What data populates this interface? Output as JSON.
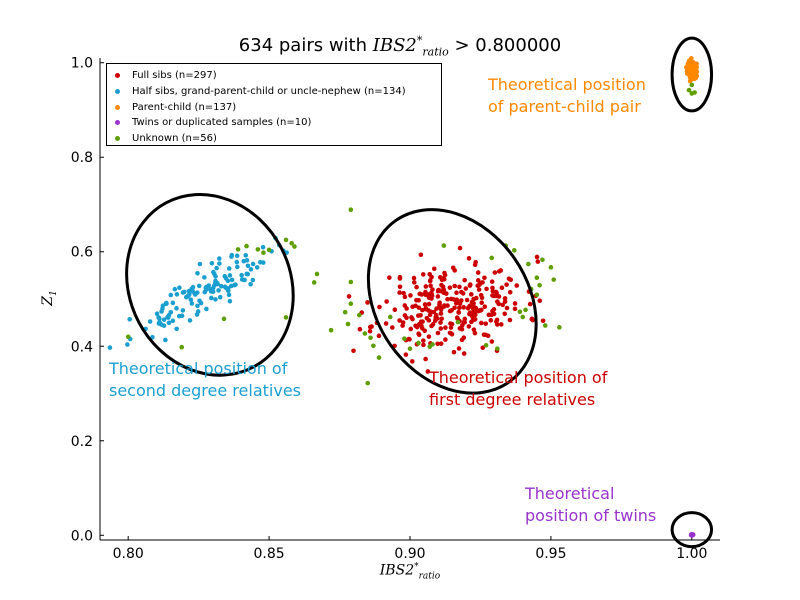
{
  "colors": {
    "full_sibs": "#cc0000",
    "half_sibs": "#1b9fd1",
    "parent_child": "#ff8800",
    "twins": "#9933cc",
    "unknown": "#5e9e00",
    "ellipse": "#000000"
  },
  "chart_data": {
    "type": "scatter",
    "title": {
      "prefix": "634 pairs with ",
      "math_base": "IBS2",
      "math_sup": "*",
      "math_sub": "ratio",
      "suffix": " > 0.800000"
    },
    "xlabel": {
      "base": "IBS2",
      "sup": "*",
      "sub": "ratio"
    },
    "ylabel": {
      "base": "Z",
      "sub": "1"
    },
    "xlim": [
      0.79,
      1.01
    ],
    "ylim": [
      -0.01,
      1.01
    ],
    "xticks": [
      "0.80",
      "0.85",
      "0.90",
      "0.95",
      "1.00"
    ],
    "yticks": [
      "0.0",
      "0.2",
      "0.4",
      "0.6",
      "0.8",
      "1.0"
    ],
    "grid": false,
    "legend_position": "top-left",
    "legend": [
      {
        "label": "Full sibs (n=297)",
        "color_key": "full_sibs"
      },
      {
        "label": "Half sibs, grand-parent-child or uncle-nephew (n=134)",
        "color_key": "half_sibs"
      },
      {
        "label": "Parent-child (n=137)",
        "color_key": "parent_child"
      },
      {
        "label": "Twins or duplicated samples (n=10)",
        "color_key": "twins"
      },
      {
        "label": "Unknown (n=56)",
        "color_key": "unknown"
      }
    ],
    "regions": [
      {
        "cx": 0.915,
        "cy": 0.495,
        "rx": 0.035,
        "ry": 0.16,
        "angle": 55
      },
      {
        "cx": 0.829,
        "cy": 0.53,
        "rx": 0.033,
        "ry": 0.17,
        "angle": 62
      },
      {
        "cx": 1.0,
        "cy": 0.975,
        "rx": 0.007,
        "ry": 0.077,
        "angle": 0
      },
      {
        "cx": 1.0,
        "cy": 0.012,
        "rx": 0.007,
        "ry": 0.036,
        "angle": 0
      }
    ],
    "series": [
      {
        "name": "Full sibs (n=297)",
        "color_key": "full_sibs",
        "generator": {
          "count": 297,
          "cx": 0.915,
          "cy": 0.485,
          "sx": 0.013,
          "sy": 0.045,
          "rho": 0.15,
          "seed": 11
        }
      },
      {
        "name": "Half sibs, grand-parent-child or uncle-nephew (n=134)",
        "color_key": "half_sibs",
        "generator": {
          "count": 134,
          "cx": 0.826,
          "cy": 0.51,
          "sx": 0.012,
          "sy": 0.045,
          "rho": 0.88,
          "seed": 23
        }
      },
      {
        "name": "Parent-child (n=137)",
        "color_key": "parent_child",
        "generator": {
          "count": 137,
          "cx": 1.0,
          "cy": 0.985,
          "sx": 0.0008,
          "sy": 0.01,
          "rho": 0.0,
          "seed": 37
        }
      },
      {
        "name": "Twins or duplicated samples (n=10)",
        "color_key": "twins",
        "generator": {
          "count": 10,
          "cx": 1.0,
          "cy": 0.001,
          "sx": 0.0003,
          "sy": 0.001,
          "rho": 0.0,
          "seed": 41
        }
      },
      {
        "name": "Unknown (n=56)",
        "color_key": "unknown",
        "points": [
          [
            0.879,
            0.689
          ],
          [
            0.867,
            0.553
          ],
          [
            0.866,
            0.535
          ],
          [
            0.856,
            0.625
          ],
          [
            0.858,
            0.618
          ],
          [
            0.859,
            0.611
          ],
          [
            0.85,
            0.604
          ],
          [
            0.848,
            0.598
          ],
          [
            0.846,
            0.605
          ],
          [
            0.842,
            0.612
          ],
          [
            0.839,
            0.605
          ],
          [
            0.872,
            0.434
          ],
          [
            0.877,
            0.472
          ],
          [
            0.878,
            0.447
          ],
          [
            0.879,
            0.49
          ],
          [
            0.879,
            0.536
          ],
          [
            0.882,
            0.466
          ],
          [
            0.884,
            0.427
          ],
          [
            0.887,
            0.401
          ],
          [
            0.885,
            0.322
          ],
          [
            0.889,
            0.376
          ],
          [
            0.893,
            0.462
          ],
          [
            0.898,
            0.416
          ],
          [
            0.9,
            0.395
          ],
          [
            0.903,
            0.407
          ],
          [
            0.907,
            0.399
          ],
          [
            0.912,
            0.613
          ],
          [
            0.929,
            0.587
          ],
          [
            0.931,
            0.395
          ],
          [
            0.934,
            0.613
          ],
          [
            0.937,
            0.603
          ],
          [
            0.94,
            0.462
          ],
          [
            0.941,
            0.477
          ],
          [
            0.942,
            0.574
          ],
          [
            0.943,
            0.521
          ],
          [
            0.945,
            0.545
          ],
          [
            0.945,
            0.509
          ],
          [
            0.946,
            0.529
          ],
          [
            0.947,
            0.583
          ],
          [
            0.948,
            0.444
          ],
          [
            0.953,
            0.44
          ],
          [
            0.95,
            0.567
          ],
          [
            0.951,
            0.541
          ],
          [
            0.819,
            0.398
          ],
          [
            0.8,
            0.42
          ],
          [
            0.834,
            0.458
          ],
          [
            0.856,
            0.461
          ],
          [
            0.939,
            0.473
          ],
          [
            0.927,
            0.402
          ],
          [
            0.908,
            0.404
          ],
          [
            1.0,
            0.935
          ],
          [
            1.0,
            0.953
          ],
          [
            0.999,
            0.942
          ],
          [
            1.001,
            0.937
          ],
          [
            0.917,
            0.451
          ],
          [
            0.886,
            0.418
          ]
        ]
      }
    ],
    "annotations": [
      {
        "id": "parent-child",
        "lines": [
          "Theoretical position",
          "of parent-child pair"
        ],
        "color_key": "parent_child"
      },
      {
        "id": "second-degree",
        "lines": [
          "Theoretical position of",
          "second degree relatives"
        ],
        "color_key": "half_sibs"
      },
      {
        "id": "first-degree",
        "lines": [
          "Theoretical position of",
          "first degree relatives"
        ],
        "color_key": "full_sibs"
      },
      {
        "id": "twins",
        "lines": [
          "Theoretical",
          "position of twins"
        ],
        "color_key": "twins"
      }
    ]
  }
}
